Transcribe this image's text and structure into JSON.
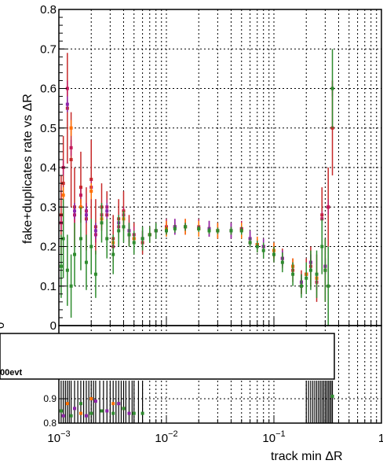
{
  "chart_data": [
    {
      "type": "scatter",
      "title": "",
      "xlabel": "track min   ΔR",
      "ylabel": "fake+duplicates rate vs   ΔR",
      "xscale": "log",
      "xlim": [
        0.001,
        1
      ],
      "ylim": [
        0,
        0.8
      ],
      "x_tick_labels": [
        {
          "mantissa": "10",
          "exponent": "−3"
        },
        {
          "mantissa": "10",
          "exponent": "−2"
        },
        {
          "mantissa": "10",
          "exponent": "−1"
        },
        {
          "mantissa": "1",
          "exponent": ""
        }
      ],
      "y_tick_labels": [
        "0",
        "0.1",
        "0.2",
        "0.3",
        "0.4",
        "0.5",
        "0.6",
        "0.7",
        "0.8"
      ],
      "grid": true,
      "series": [
        {
          "color": "#c62828",
          "x": [
            0.00105,
            0.0011,
            0.0012,
            0.0013,
            0.0014,
            0.0016,
            0.0018,
            0.002,
            0.0022,
            0.0025,
            0.0028,
            0.0032,
            0.0036,
            0.004,
            0.0045,
            0.005,
            0.006,
            0.007,
            0.008,
            0.01,
            0.012,
            0.015,
            0.02,
            0.025,
            0.03,
            0.04,
            0.05,
            0.06,
            0.07,
            0.08,
            0.1,
            0.12,
            0.15,
            0.18,
            0.2,
            0.22,
            0.25,
            0.28,
            0.3,
            0.32,
            0.35
          ],
          "y": [
            0.28,
            0.36,
            0.55,
            0.42,
            0.3,
            0.35,
            0.27,
            0.37,
            0.25,
            0.3,
            0.28,
            0.22,
            0.27,
            0.29,
            0.24,
            0.22,
            0.21,
            0.23,
            0.24,
            0.245,
            0.25,
            0.25,
            0.245,
            0.245,
            0.24,
            0.24,
            0.245,
            0.21,
            0.205,
            0.2,
            0.19,
            0.17,
            0.14,
            0.11,
            0.13,
            0.15,
            0.12,
            0.28,
            0.14,
            0.3,
            0.5
          ],
          "err": [
            0.1,
            0.12,
            0.14,
            0.12,
            0.1,
            0.09,
            0.08,
            0.1,
            0.07,
            0.06,
            0.06,
            0.06,
            0.05,
            0.05,
            0.04,
            0.04,
            0.03,
            0.02,
            0.02,
            0.01,
            0.01,
            0.01,
            0.008,
            0.008,
            0.008,
            0.01,
            0.01,
            0.012,
            0.015,
            0.02,
            0.02,
            0.025,
            0.03,
            0.03,
            0.04,
            0.05,
            0.06,
            0.07,
            0.08,
            0.1,
            0.12
          ]
        },
        {
          "color": "#c2185b",
          "x": [
            0.00105,
            0.0011,
            0.0012,
            0.0013,
            0.0014,
            0.0016,
            0.0018,
            0.002,
            0.0022,
            0.0025,
            0.0028,
            0.0032,
            0.0036,
            0.004,
            0.0045,
            0.005,
            0.006,
            0.007,
            0.008,
            0.01,
            0.012,
            0.015,
            0.02,
            0.025,
            0.03,
            0.04,
            0.05,
            0.06,
            0.07,
            0.08,
            0.1,
            0.12,
            0.15,
            0.18,
            0.2,
            0.22,
            0.25,
            0.28,
            0.3,
            0.32,
            0.35
          ],
          "y": [
            0.26,
            0.4,
            0.6,
            0.45,
            0.28,
            0.33,
            0.29,
            0.35,
            0.23,
            0.28,
            0.3,
            0.2,
            0.25,
            0.28,
            0.23,
            0.23,
            0.22,
            0.23,
            0.24,
            0.25,
            0.25,
            0.25,
            0.25,
            0.245,
            0.24,
            0.24,
            0.245,
            0.22,
            0.205,
            0.2,
            0.18,
            0.17,
            0.15,
            0.1,
            0.13,
            0.16,
            0.11,
            0.27,
            0.15,
            0.3,
            0.6
          ]
        },
        {
          "color": "#ff6f00",
          "x": [
            0.0011,
            0.0013,
            0.0016,
            0.002,
            0.0025,
            0.0032,
            0.004,
            0.005,
            0.007,
            0.01,
            0.015,
            0.02,
            0.03,
            0.05,
            0.07,
            0.1,
            0.15,
            0.2,
            0.25
          ],
          "y": [
            0.33,
            0.5,
            0.3,
            0.34,
            0.27,
            0.21,
            0.27,
            0.22,
            0.23,
            0.245,
            0.25,
            0.245,
            0.24,
            0.24,
            0.205,
            0.19,
            0.15,
            0.13,
            0.12
          ]
        },
        {
          "color": "#8e24aa",
          "x": [
            0.0012,
            0.0014,
            0.0018,
            0.0022,
            0.0028,
            0.0036,
            0.0045,
            0.006,
            0.008,
            0.012,
            0.025,
            0.04,
            0.06,
            0.08,
            0.12,
            0.18,
            0.22,
            0.3
          ],
          "y": [
            0.56,
            0.29,
            0.28,
            0.24,
            0.29,
            0.26,
            0.24,
            0.22,
            0.24,
            0.25,
            0.245,
            0.24,
            0.22,
            0.2,
            0.17,
            0.11,
            0.16,
            0.15
          ]
        },
        {
          "color": "#2e8b2e",
          "x": [
            0.00105,
            0.0011,
            0.0012,
            0.0013,
            0.0014,
            0.0016,
            0.0018,
            0.002,
            0.0022,
            0.0025,
            0.0028,
            0.0032,
            0.0036,
            0.004,
            0.0045,
            0.005,
            0.006,
            0.007,
            0.008,
            0.01,
            0.012,
            0.015,
            0.02,
            0.025,
            0.03,
            0.04,
            0.05,
            0.06,
            0.07,
            0.08,
            0.1,
            0.12,
            0.15,
            0.18,
            0.2,
            0.22,
            0.25,
            0.28,
            0.3,
            0.32,
            0.35
          ],
          "y": [
            0.15,
            0.22,
            0.14,
            0.1,
            0.18,
            0.22,
            0.16,
            0.2,
            0.13,
            0.26,
            0.22,
            0.18,
            0.24,
            0.25,
            0.23,
            0.21,
            0.22,
            0.23,
            0.24,
            0.24,
            0.245,
            0.25,
            0.245,
            0.24,
            0.24,
            0.24,
            0.24,
            0.21,
            0.2,
            0.19,
            0.18,
            0.16,
            0.13,
            0.1,
            0.12,
            0.14,
            0.13,
            0.2,
            0.14,
            0.1,
            0.6
          ],
          "err": [
            0.08,
            0.1,
            0.09,
            0.08,
            0.08,
            0.08,
            0.07,
            0.07,
            0.06,
            0.05,
            0.05,
            0.05,
            0.04,
            0.04,
            0.03,
            0.03,
            0.03,
            0.02,
            0.02,
            0.01,
            0.01,
            0.01,
            0.008,
            0.008,
            0.008,
            0.01,
            0.01,
            0.012,
            0.015,
            0.02,
            0.02,
            0.025,
            0.03,
            0.03,
            0.04,
            0.05,
            0.06,
            0.07,
            0.08,
            0.1,
            0.1
          ]
        }
      ]
    },
    {
      "type": "scatter",
      "xscale": "log",
      "xlim": [
        0.001,
        1
      ],
      "ylim": [
        0.8,
        1.2
      ],
      "y_tick_labels": [
        "0.8",
        "0.9"
      ],
      "grid": true,
      "series": [
        {
          "color": "#8e24aa",
          "x": [
            0.0011,
            0.0014,
            0.0018,
            0.0022,
            0.0028,
            0.0036,
            0.0045
          ],
          "y": [
            0.83,
            0.86,
            0.83,
            0.89,
            0.85,
            0.88,
            0.84
          ]
        },
        {
          "color": "#ff6f00",
          "x": [
            0.0012,
            0.0016,
            0.002,
            0.0025,
            0.0032,
            0.004
          ],
          "y": [
            0.88,
            0.84,
            0.9,
            0.85,
            0.88,
            0.86
          ]
        },
        {
          "color": "#2e8b2e",
          "x": [
            0.00105,
            0.0013,
            0.0016,
            0.002,
            0.0025,
            0.0032,
            0.004,
            0.005,
            0.006,
            0.35
          ],
          "y": [
            0.85,
            0.83,
            0.88,
            0.84,
            0.85,
            0.84,
            0.86,
            0.84,
            0.84,
            0.91
          ]
        }
      ]
    }
  ],
  "legend": {
    "text": "00evt"
  },
  "bottom_pad_label": "0"
}
